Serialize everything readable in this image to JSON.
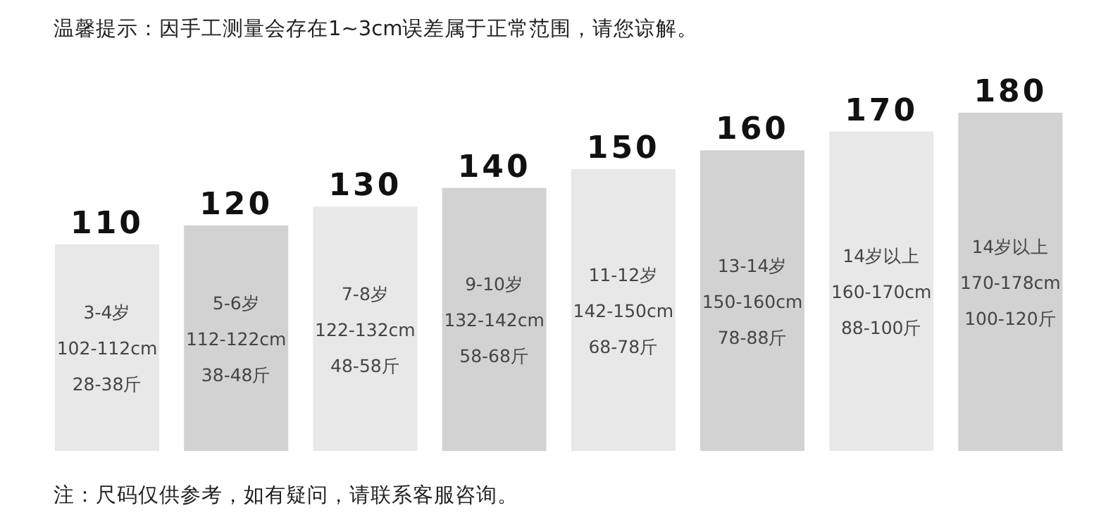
{
  "chart_data": {
    "type": "bar",
    "title": "温馨提示：因手工测量会存在1~3cm误差属于正常范围，请您谅解。",
    "annotations": [
      "注：尺码仅供参考，如有疑问，请联系客服咨询。"
    ],
    "categories": [
      "3-4岁 102-112cm 28-38斤",
      "5-6岁 112-122cm 38-48斤",
      "7-8岁 122-132cm 48-58斤",
      "9-10岁 132-142cm 58-68斤",
      "11-12岁 142-150cm 68-78斤",
      "13-14岁 150-160cm 78-88斤",
      "14岁以上 160-170cm 88-100斤",
      "14岁以上 170-178cm 100-120斤"
    ],
    "values": [
      110,
      120,
      130,
      140,
      150,
      160,
      170,
      180
    ],
    "colors": [
      "#e8e8e8",
      "#d3d2d3",
      "#e8e8e8",
      "#d3d2d3",
      "#e8e8e8",
      "#d3d2d3",
      "#e8e8e8",
      "#d3d2d3"
    ],
    "data_labels": true
  }
}
